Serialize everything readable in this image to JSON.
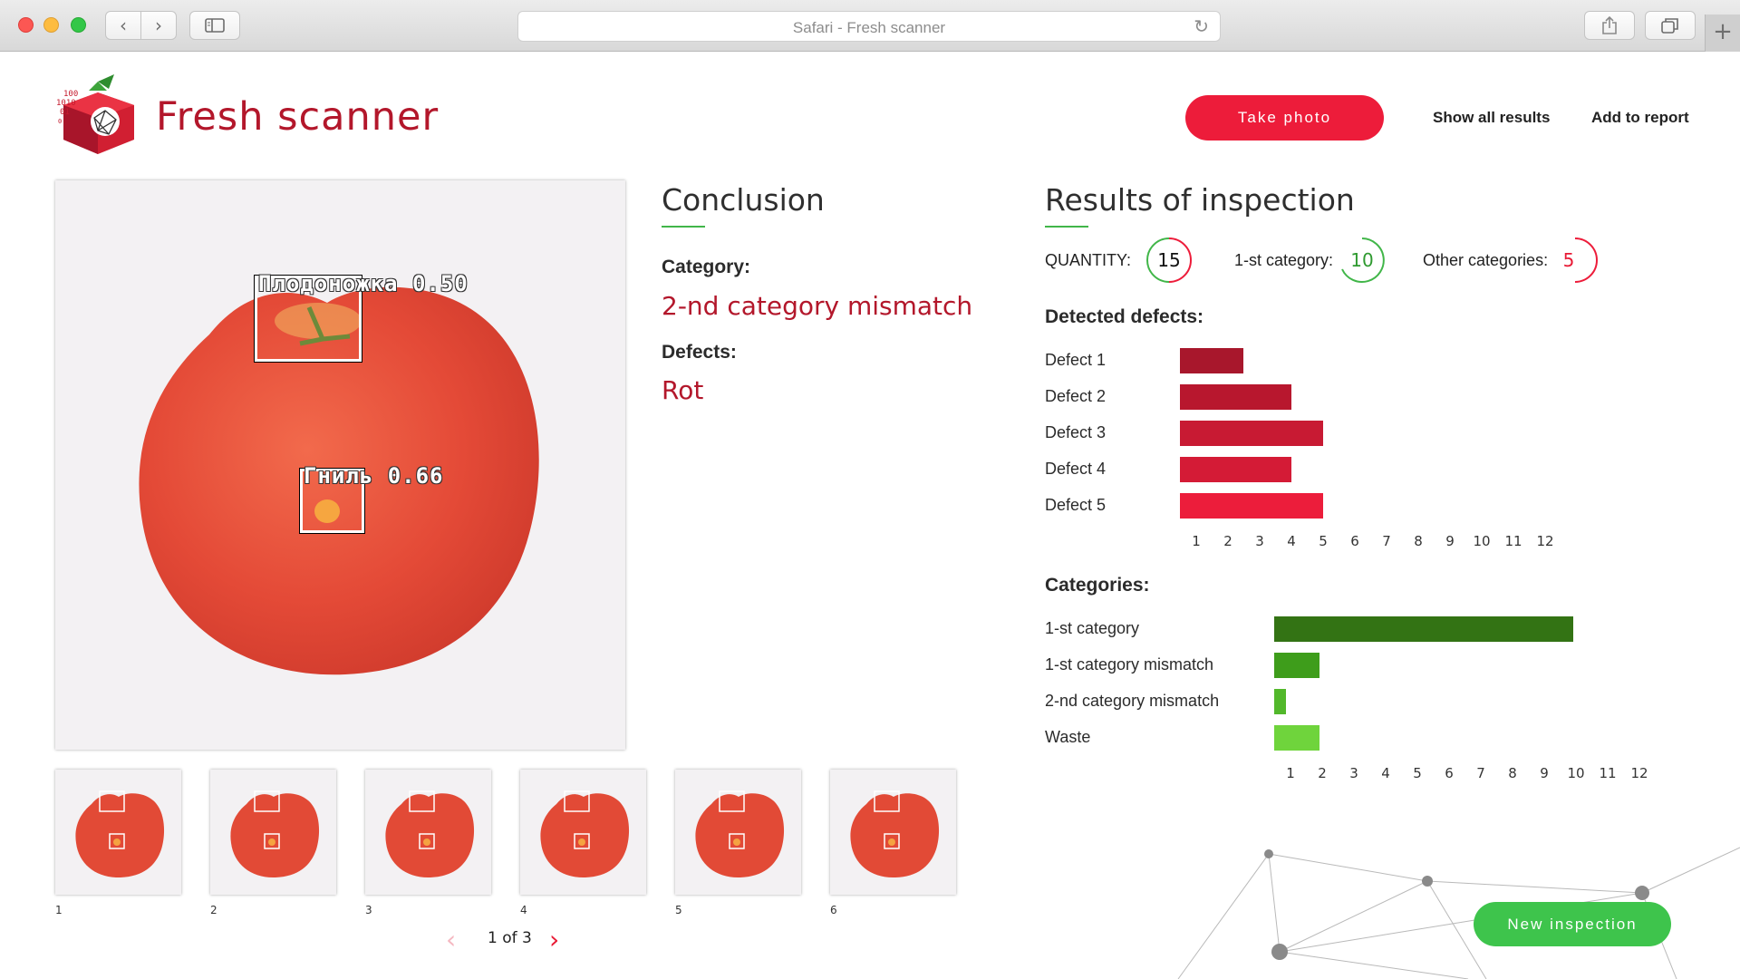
{
  "window": {
    "address_text": "Safari - Fresh scanner"
  },
  "header": {
    "brand": "Fresh scanner",
    "logo_digits": [
      "100",
      "1010",
      "01",
      "0"
    ],
    "take_photo": "Take photo",
    "show_all_results": "Show all results",
    "add_to_report": "Add to report"
  },
  "image": {
    "detections": [
      {
        "label": "Плодоножка 0.50"
      },
      {
        "label": "Гниль 0.66"
      }
    ]
  },
  "thumbnails": [
    "1",
    "2",
    "3",
    "4",
    "5",
    "6"
  ],
  "pagination": {
    "text": "1 of 3"
  },
  "conclusion": {
    "title": "Conclusion",
    "category_label": "Category:",
    "category_value": "2-nd category mismatch",
    "defects_label": "Defects:",
    "defects_value": "Rot"
  },
  "results": {
    "title": "Results of inspection",
    "quantity_label": "QUANTITY:",
    "quantity": "15",
    "first_category_label": "1-st category:",
    "first_category": "10",
    "other_categories_label": "Other categories:",
    "other_categories": "5",
    "detected_defects_label": "Detected defects:",
    "categories_label": "Categories:"
  },
  "colors": {
    "brand_red": "#b3172b",
    "button_red": "#ed1c3a",
    "button_green": "#3ec44c",
    "ring_green": "#41b649",
    "ring_red": "#ed1c3a"
  },
  "chart_data": [
    {
      "type": "bar",
      "orientation": "horizontal",
      "title": "Detected defects:",
      "categories": [
        "Defect 1",
        "Defect 2",
        "Defect 3",
        "Defect 4",
        "Defect 5"
      ],
      "values": [
        2,
        3.5,
        4.5,
        3.5,
        4.5
      ],
      "colors": [
        "#a8172c",
        "#b8172e",
        "#c81a33",
        "#d41b36",
        "#ec1d3b"
      ],
      "ticks": [
        "1",
        "2",
        "3",
        "4",
        "5",
        "6",
        "7",
        "8",
        "9",
        "10",
        "11",
        "12"
      ],
      "xlim": [
        0,
        12
      ]
    },
    {
      "type": "bar",
      "orientation": "horizontal",
      "title": "Categories:",
      "categories": [
        "1-st category",
        "1-st category mismatch",
        "2-nd category mismatch",
        "Waste"
      ],
      "values": [
        10,
        1.5,
        0.4,
        1.5
      ],
      "colors": [
        "#337314",
        "#3e9d1b",
        "#52b82b",
        "#6fd43c"
      ],
      "ticks": [
        "1",
        "2",
        "3",
        "4",
        "5",
        "6",
        "7",
        "8",
        "9",
        "10",
        "11",
        "12"
      ],
      "xlim": [
        0,
        12
      ]
    }
  ]
}
